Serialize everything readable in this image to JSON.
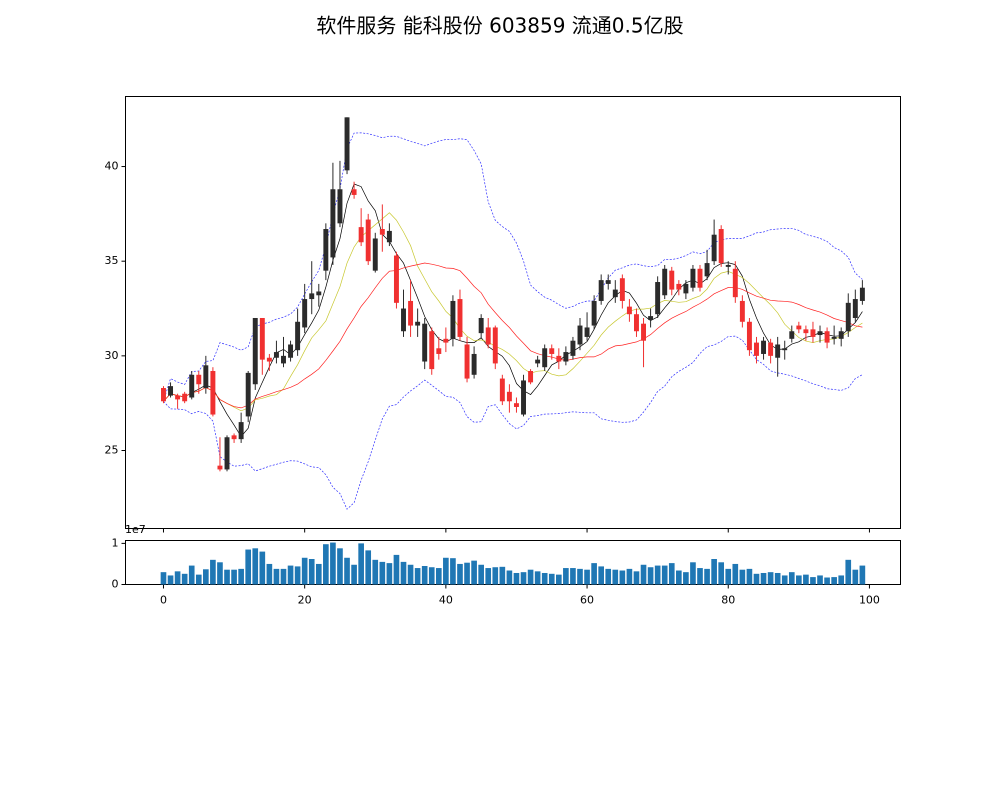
{
  "chart_data": {
    "type": "candlestick",
    "title": "软件服务 能科股份 603859 流通0.5亿股",
    "x": [
      0,
      1,
      2,
      3,
      4,
      5,
      6,
      7,
      8,
      9,
      10,
      11,
      12,
      13,
      14,
      15,
      16,
      17,
      18,
      19,
      20,
      21,
      22,
      23,
      24,
      25,
      26,
      27,
      28,
      29,
      30,
      31,
      32,
      33,
      34,
      35,
      36,
      37,
      38,
      39,
      40,
      41,
      42,
      43,
      44,
      45,
      46,
      47,
      48,
      49,
      50,
      51,
      52,
      53,
      54,
      55,
      56,
      57,
      58,
      59,
      60,
      61,
      62,
      63,
      64,
      65,
      66,
      67,
      68,
      69,
      70,
      71,
      72,
      73,
      74,
      75,
      76,
      77,
      78,
      79,
      80,
      81,
      82,
      83,
      84,
      85,
      86,
      87,
      88,
      89,
      90,
      91,
      92,
      93,
      94,
      95,
      96,
      97,
      98,
      99
    ],
    "open": [
      28.3,
      27.9,
      27.9,
      28.0,
      27.8,
      29.0,
      28.3,
      29.2,
      24.2,
      24.0,
      25.8,
      25.6,
      26.8,
      28.5,
      32.0,
      29.9,
      29.9,
      29.6,
      29.9,
      30.3,
      31.5,
      33.0,
      33.2,
      34.5,
      35.2,
      37.0,
      39.8,
      38.8,
      36.8,
      37.2,
      34.5,
      36.7,
      36.0,
      35.3,
      31.3,
      32.9,
      31.6,
      29.7,
      31.3,
      30.4,
      30.9,
      30.9,
      33.0,
      30.6,
      29.0,
      31.2,
      31.5,
      31.5,
      28.8,
      28.1,
      27.5,
      26.9,
      29.2,
      29.6,
      29.4,
      30.4,
      30.0,
      29.7,
      30.0,
      30.6,
      31.0,
      31.6,
      32.9,
      33.8,
      33.1,
      34.1,
      32.6,
      32.2,
      31.7,
      31.9,
      32.2,
      33.2,
      34.5,
      33.8,
      33.3,
      33.6,
      34.6,
      34.2,
      35.0,
      36.7,
      34.7,
      34.6,
      32.9,
      31.8,
      30.7,
      30.1,
      30.7,
      29.9,
      30.3,
      30.9,
      31.6,
      31.4,
      31.4,
      31.1,
      31.3,
      30.9,
      30.9,
      31.3,
      32.0,
      32.9
    ],
    "high": [
      28.4,
      28.6,
      28.0,
      28.1,
      29.2,
      29.2,
      30.0,
      29.4,
      25.7,
      25.8,
      25.9,
      27.0,
      29.2,
      32.0,
      32.0,
      30.1,
      30.8,
      31.0,
      30.8,
      32.5,
      33.8,
      35.0,
      33.8,
      37.0,
      40.2,
      40.3,
      42.6,
      39.2,
      37.8,
      37.5,
      36.5,
      38.0,
      37.0,
      35.5,
      33.5,
      34.0,
      32.5,
      32.0,
      31.5,
      31.0,
      31.5,
      33.2,
      33.5,
      31.0,
      30.5,
      32.2,
      32.0,
      31.6,
      29.0,
      28.5,
      27.8,
      29.0,
      29.3,
      30.0,
      30.6,
      30.6,
      30.4,
      30.5,
      31.0,
      32.0,
      32.3,
      33.2,
      34.3,
      34.3,
      34.0,
      34.3,
      33.0,
      32.5,
      32.0,
      32.5,
      34.2,
      34.8,
      34.7,
      34.0,
      34.0,
      34.8,
      34.8,
      35.6,
      37.2,
      36.9,
      35.0,
      35.0,
      33.2,
      32.0,
      31.0,
      31.0,
      30.9,
      31.0,
      30.8,
      31.6,
      31.8,
      31.6,
      31.8,
      31.6,
      31.5,
      31.6,
      31.5,
      33.3,
      33.5,
      34.0
    ],
    "low": [
      27.5,
      27.8,
      27.2,
      27.5,
      27.7,
      28.0,
      28.0,
      26.8,
      23.9,
      23.9,
      25.4,
      25.4,
      26.5,
      28.2,
      29.0,
      29.2,
      29.6,
      29.4,
      29.7,
      30.0,
      31.2,
      32.2,
      32.6,
      34.0,
      34.8,
      36.8,
      39.6,
      38.3,
      35.8,
      34.8,
      34.4,
      35.5,
      35.8,
      32.5,
      31.0,
      31.0,
      31.0,
      29.3,
      29.0,
      29.8,
      30.2,
      30.5,
      30.8,
      28.6,
      28.8,
      30.9,
      30.4,
      29.3,
      27.4,
      27.0,
      27.0,
      26.8,
      28.5,
      29.4,
      29.2,
      29.8,
      29.3,
      29.5,
      29.8,
      30.3,
      30.8,
      31.4,
      32.7,
      33.5,
      32.8,
      32.5,
      31.8,
      31.0,
      29.4,
      31.5,
      32.0,
      33.0,
      33.2,
      33.2,
      33.0,
      33.4,
      33.4,
      34.0,
      34.8,
      34.7,
      34.3,
      32.8,
      31.5,
      30.0,
      29.6,
      29.8,
      29.6,
      28.9,
      29.8,
      30.7,
      31.2,
      30.8,
      30.7,
      30.7,
      30.4,
      30.6,
      30.5,
      31.0,
      31.8,
      32.7
    ],
    "close": [
      27.6,
      28.4,
      27.7,
      27.6,
      29.0,
      28.5,
      29.5,
      26.9,
      24.0,
      25.7,
      25.6,
      26.5,
      29.1,
      32.0,
      29.8,
      29.7,
      30.2,
      30.0,
      30.6,
      31.8,
      33.0,
      33.3,
      33.4,
      36.7,
      38.8,
      38.8,
      42.6,
      38.5,
      36.0,
      35.0,
      36.2,
      36.4,
      36.6,
      32.8,
      32.5,
      31.6,
      31.8,
      31.7,
      29.3,
      30.1,
      30.7,
      32.9,
      31.0,
      28.8,
      30.1,
      32.0,
      30.6,
      29.6,
      27.6,
      27.6,
      27.3,
      28.7,
      28.6,
      29.8,
      30.4,
      30.1,
      29.7,
      30.2,
      30.8,
      31.6,
      31.5,
      32.9,
      34.0,
      34.0,
      33.5,
      32.9,
      32.2,
      31.3,
      30.8,
      32.1,
      33.9,
      34.6,
      33.5,
      33.5,
      33.8,
      34.6,
      33.6,
      34.9,
      36.4,
      34.9,
      34.8,
      33.1,
      31.8,
      30.3,
      30.0,
      30.8,
      30.0,
      30.6,
      30.4,
      31.3,
      31.4,
      31.2,
      31.0,
      31.3,
      30.7,
      31.0,
      31.3,
      32.8,
      33.0,
      33.6
    ],
    "volume": [
      3000000,
      2200000,
      3200000,
      2600000,
      4600000,
      2400000,
      3700000,
      6000000,
      5400000,
      3600000,
      3600000,
      3800000,
      8500000,
      8800000,
      8000000,
      5000000,
      3800000,
      3800000,
      4600000,
      4400000,
      6500000,
      6200000,
      5000000,
      9800000,
      10200000,
      8800000,
      6500000,
      4800000,
      10000000,
      8300000,
      6000000,
      5500000,
      5200000,
      7200000,
      5500000,
      4800000,
      4000000,
      4500000,
      4200000,
      4000000,
      6500000,
      6400000,
      5000000,
      5300000,
      5800000,
      4800000,
      4000000,
      4200000,
      4300000,
      3400000,
      2800000,
      3000000,
      3600000,
      3200000,
      2800000,
      2600000,
      2400000,
      4000000,
      4000000,
      3800000,
      3600000,
      5200000,
      4400000,
      3800000,
      3600000,
      3400000,
      3800000,
      3200000,
      4800000,
      4200000,
      4600000,
      4600000,
      5200000,
      3400000,
      3000000,
      5400000,
      4000000,
      3800000,
      6200000,
      5400000,
      3800000,
      5000000,
      3600000,
      3800000,
      2600000,
      2800000,
      3000000,
      2800000,
      2200000,
      3000000,
      2200000,
      2400000,
      1800000,
      2200000,
      1700000,
      1800000,
      2200000,
      6000000,
      3600000,
      4600000
    ],
    "up_color": "#2b2b2b",
    "down_color": "#f03030",
    "volume_color": "#1f77b4",
    "ma_colors": [
      "#000000",
      "#c8c830",
      "#ff2020"
    ],
    "band_color": "#3030ff",
    "xlim": [
      -5.38,
      104.4
    ],
    "xticks": [
      0,
      20,
      40,
      60,
      80,
      100
    ],
    "ylim": [
      20.88,
      43.7
    ],
    "yticks": [
      25,
      30,
      35,
      40
    ],
    "volume_ylim": [
      0,
      10700000
    ],
    "volume_yticks": [
      0,
      {
        "value": 10000000,
        "label": "1"
      }
    ],
    "volume_offset_label": "1e7"
  }
}
